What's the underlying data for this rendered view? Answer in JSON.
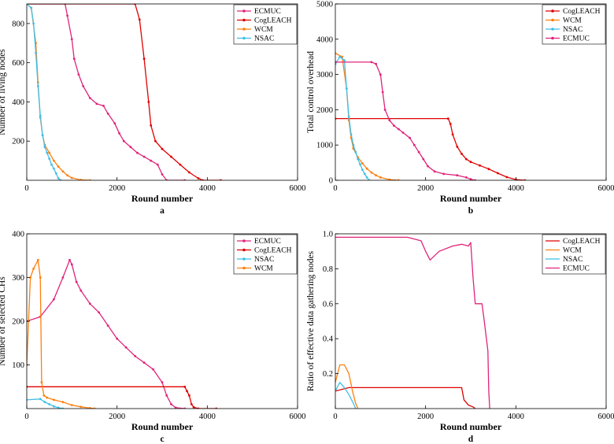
{
  "chart_data": [
    {
      "type": "line",
      "panel_label": "a",
      "xlabel": "Round number",
      "ylabel": "Number of living nodes",
      "xlim": [
        0,
        6000
      ],
      "ylim": [
        0,
        900
      ],
      "xticks": [
        0,
        2000,
        4000,
        6000
      ],
      "yticks": [
        200,
        400,
        600,
        800
      ],
      "legend_position": "top-right",
      "series": [
        {
          "name": "ECMUC",
          "color": "#e0247a",
          "marker": "dot",
          "x": [
            0,
            850,
            900,
            1000,
            1050,
            1150,
            1250,
            1400,
            1550,
            1700,
            1800,
            1950,
            2050,
            2150,
            2300,
            2450,
            2600,
            2750,
            2900,
            3000,
            3100,
            3500
          ],
          "y": [
            900,
            900,
            840,
            720,
            620,
            540,
            480,
            420,
            390,
            380,
            340,
            290,
            240,
            200,
            170,
            140,
            120,
            100,
            80,
            30,
            0,
            0
          ]
        },
        {
          "name": "CogLEACH",
          "color": "#e00000",
          "marker": "dot",
          "x": [
            0,
            2400,
            2500,
            2600,
            2700,
            2750,
            2850,
            3000,
            3200,
            3400,
            3600,
            3800,
            3900,
            4300
          ],
          "y": [
            900,
            900,
            820,
            620,
            400,
            280,
            200,
            160,
            120,
            80,
            40,
            10,
            0,
            0
          ]
        },
        {
          "name": "WCM",
          "color": "#ff7f0e",
          "marker": "dot",
          "x": [
            0,
            100,
            200,
            250,
            300,
            350,
            400,
            500,
            600,
            700,
            800,
            900,
            1000,
            1200,
            1400
          ],
          "y": [
            900,
            880,
            700,
            500,
            320,
            230,
            180,
            140,
            100,
            70,
            45,
            25,
            12,
            2,
            0
          ]
        },
        {
          "name": "NSAC",
          "color": "#3fbfe8",
          "marker": "dot",
          "x": [
            0,
            100,
            150,
            200,
            250,
            300,
            350,
            400,
            450,
            500,
            550,
            600,
            650,
            700,
            750
          ],
          "y": [
            900,
            880,
            800,
            650,
            480,
            330,
            230,
            170,
            140,
            110,
            80,
            60,
            35,
            10,
            0
          ]
        }
      ]
    },
    {
      "type": "line",
      "panel_label": "b",
      "xlabel": "Round number",
      "ylabel": "Total control overhead",
      "xlim": [
        0,
        6000
      ],
      "ylim": [
        0,
        5000
      ],
      "xticks": [
        0,
        2000,
        4000,
        6000
      ],
      "yticks": [
        0,
        1000,
        2000,
        3000,
        4000,
        5000
      ],
      "legend_position": "top-right",
      "series": [
        {
          "name": "CogLEACH",
          "color": "#e00000",
          "marker": "dot",
          "x": [
            0,
            2500,
            2550,
            2600,
            2700,
            2800,
            2900,
            3000,
            3200,
            3400,
            3600,
            3800,
            4000,
            4200
          ],
          "y": [
            1750,
            1750,
            1600,
            1300,
            950,
            750,
            600,
            520,
            420,
            320,
            200,
            90,
            20,
            0
          ]
        },
        {
          "name": "WCM",
          "color": "#ff7f0e",
          "marker": "dot",
          "x": [
            0,
            150,
            250,
            300,
            350,
            400,
            500,
            600,
            700,
            800,
            900,
            1000,
            1200,
            1400
          ],
          "y": [
            3600,
            3500,
            2600,
            1700,
            1200,
            900,
            650,
            480,
            330,
            220,
            140,
            80,
            20,
            0
          ]
        },
        {
          "name": "NSAC",
          "color": "#3fbfe8",
          "marker": "dot",
          "x": [
            0,
            100,
            200,
            250,
            300,
            350,
            400,
            450,
            500,
            550,
            600,
            650,
            700,
            750
          ],
          "y": [
            3300,
            3500,
            3400,
            2600,
            1800,
            1300,
            1000,
            800,
            600,
            450,
            300,
            180,
            80,
            0
          ]
        },
        {
          "name": "ECMUC",
          "color": "#e0247a",
          "marker": "dot",
          "x": [
            0,
            800,
            900,
            1000,
            1050,
            1100,
            1200,
            1300,
            1400,
            1500,
            1650,
            1750,
            1850,
            1950,
            2050,
            2200,
            2400,
            2700,
            2900,
            3000,
            3100
          ],
          "y": [
            3350,
            3350,
            3300,
            3000,
            2500,
            2000,
            1700,
            1550,
            1450,
            1350,
            1200,
            1000,
            800,
            600,
            400,
            250,
            180,
            140,
            80,
            30,
            0
          ]
        }
      ]
    },
    {
      "type": "line",
      "panel_label": "c",
      "xlabel": "Round number",
      "ylabel": "Number of selected CHs",
      "xlim": [
        0,
        6000
      ],
      "ylim": [
        0,
        400
      ],
      "xticks": [
        0,
        2000,
        4000,
        6000
      ],
      "yticks": [
        100,
        200,
        300,
        400
      ],
      "legend_position": "top-right",
      "series": [
        {
          "name": "ECMUC",
          "color": "#e0247a",
          "marker": "dot",
          "x": [
            0,
            300,
            600,
            800,
            950,
            1000,
            1100,
            1200,
            1400,
            1600,
            1800,
            2000,
            2200,
            2400,
            2600,
            2800,
            3000,
            3100,
            3200,
            3300,
            3500
          ],
          "y": [
            200,
            210,
            250,
            300,
            340,
            330,
            290,
            270,
            240,
            220,
            190,
            160,
            140,
            120,
            105,
            90,
            60,
            30,
            10,
            2,
            0
          ]
        },
        {
          "name": "CogLEACH",
          "color": "#e00000",
          "marker": "dot",
          "x": [
            0,
            3500,
            3550,
            3600,
            3650,
            3700,
            3800,
            4200
          ],
          "y": [
            50,
            50,
            40,
            30,
            10,
            3,
            0,
            0
          ]
        },
        {
          "name": "NSAC",
          "color": "#3fbfe8",
          "marker": "dot",
          "x": [
            0,
            300,
            400,
            500,
            600,
            700,
            800
          ],
          "y": [
            20,
            22,
            15,
            10,
            5,
            2,
            0
          ]
        },
        {
          "name": "WCM",
          "color": "#ff7f0e",
          "marker": "dot",
          "x": [
            0,
            80,
            150,
            250,
            300,
            330,
            380,
            450,
            600,
            800,
            1000,
            1200,
            1400,
            1500
          ],
          "y": [
            100,
            300,
            320,
            340,
            300,
            60,
            30,
            25,
            20,
            15,
            8,
            4,
            1,
            0
          ]
        }
      ]
    },
    {
      "type": "line",
      "panel_label": "d",
      "xlabel": "Round number",
      "ylabel": "Ratio of effective data gathering nodes",
      "xlim": [
        0,
        6000
      ],
      "ylim": [
        0,
        1.0
      ],
      "xticks": [
        0,
        2000,
        4000,
        6000
      ],
      "yticks": [
        0.2,
        0.4,
        0.6,
        0.8,
        1.0
      ],
      "legend_position": "top-right",
      "series": [
        {
          "name": "CogLEACH",
          "color": "#e00000",
          "marker": "none",
          "x": [
            0,
            300,
            2800,
            2850,
            2950,
            3050,
            3100
          ],
          "y": [
            0.1,
            0.12,
            0.12,
            0.05,
            0.02,
            0.01,
            0
          ]
        },
        {
          "name": "WCM",
          "color": "#ff7f0e",
          "marker": "none",
          "x": [
            0,
            100,
            200,
            300,
            380,
            450,
            500
          ],
          "y": [
            0.15,
            0.25,
            0.25,
            0.2,
            0.1,
            0.03,
            0
          ]
        },
        {
          "name": "NSAC",
          "color": "#3fbfe8",
          "marker": "none",
          "x": [
            0,
            100,
            200,
            300,
            400,
            450
          ],
          "y": [
            0.1,
            0.15,
            0.12,
            0.08,
            0.03,
            0
          ]
        },
        {
          "name": "ECMUC",
          "color": "#e0247a",
          "marker": "none",
          "x": [
            0,
            800,
            1600,
            1900,
            2000,
            2100,
            2300,
            2600,
            2800,
            2950,
            3000,
            3050,
            3100,
            3250,
            3300,
            3380,
            3400,
            3420
          ],
          "y": [
            0.98,
            0.98,
            0.98,
            0.96,
            0.9,
            0.85,
            0.9,
            0.93,
            0.94,
            0.93,
            0.95,
            0.75,
            0.6,
            0.6,
            0.5,
            0.33,
            0.1,
            0
          ]
        }
      ]
    }
  ]
}
